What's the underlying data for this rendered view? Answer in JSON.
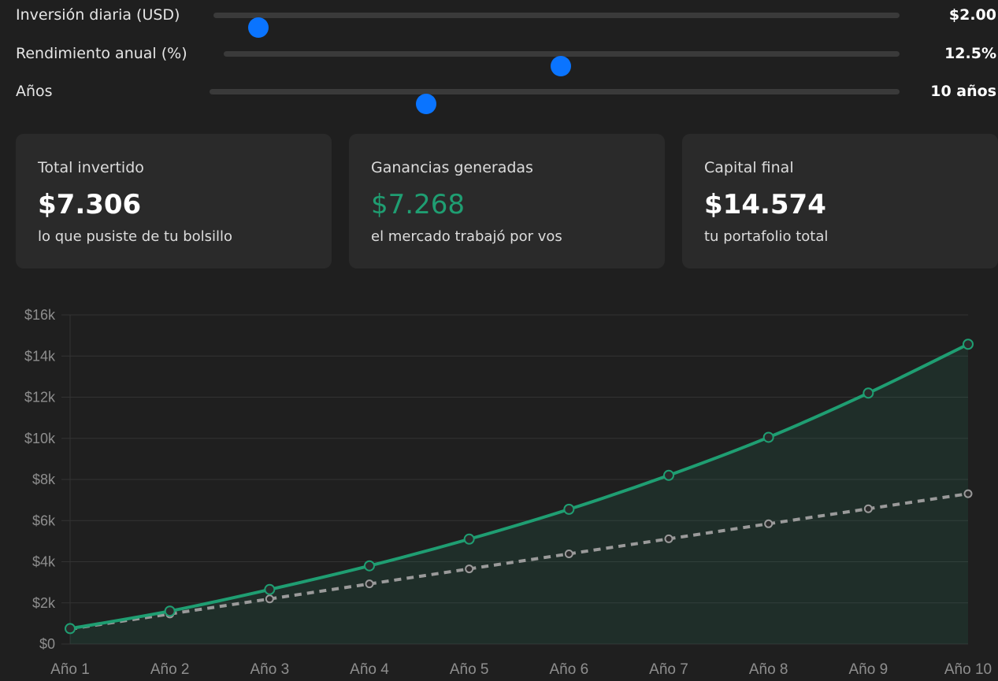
{
  "sliders": [
    {
      "label": "Inversión diaria (USD)",
      "value_text": "$2.00",
      "fraction": 0.066
    },
    {
      "label": "Rendimiento anual (%)",
      "value_text": "12.5%",
      "fraction": 0.4985
    },
    {
      "label": "Años",
      "value_text": "10 años",
      "fraction": 0.314
    }
  ],
  "cards": [
    {
      "label": "Total invertido",
      "value": "$7.306",
      "sub": "lo que pusiste de tu bolsillo"
    },
    {
      "label": "Ganancias generadas",
      "value": "$7.268",
      "sub": "el mercado trabajó por vos"
    },
    {
      "label": "Capital final",
      "value": "$14.574",
      "sub": "tu portafolio total"
    }
  ],
  "colors": {
    "background": "#1f1f1f",
    "card": "#2a2a2a",
    "accent_blue": "#0a74ff",
    "growth_green": "#1f9e72",
    "invested_gray": "#9a9a9a"
  },
  "chart_data": {
    "type": "line",
    "x": [
      "Año 1",
      "Año 2",
      "Año 3",
      "Año 4",
      "Año 5",
      "Año 6",
      "Año 7",
      "Año 8",
      "Año 9",
      "Año 10"
    ],
    "ylim": [
      0,
      16000
    ],
    "yticks": [
      "$0",
      "$2k",
      "$4k",
      "$6k",
      "$8k",
      "$10k",
      "$12k",
      "$14k",
      "$16k"
    ],
    "grid": true,
    "series": [
      {
        "key": "capital",
        "style": "solid",
        "fill": true,
        "color": "#1f9e72",
        "values": [
          750,
          1600,
          2650,
          3800,
          5100,
          6550,
          8200,
          10050,
          12200,
          14574
        ]
      },
      {
        "key": "invested",
        "style": "dashed",
        "fill": false,
        "color": "#9a9a9a",
        "values": [
          730,
          1461,
          2192,
          2922,
          3653,
          4384,
          5114,
          5845,
          6575,
          7306
        ]
      }
    ]
  }
}
